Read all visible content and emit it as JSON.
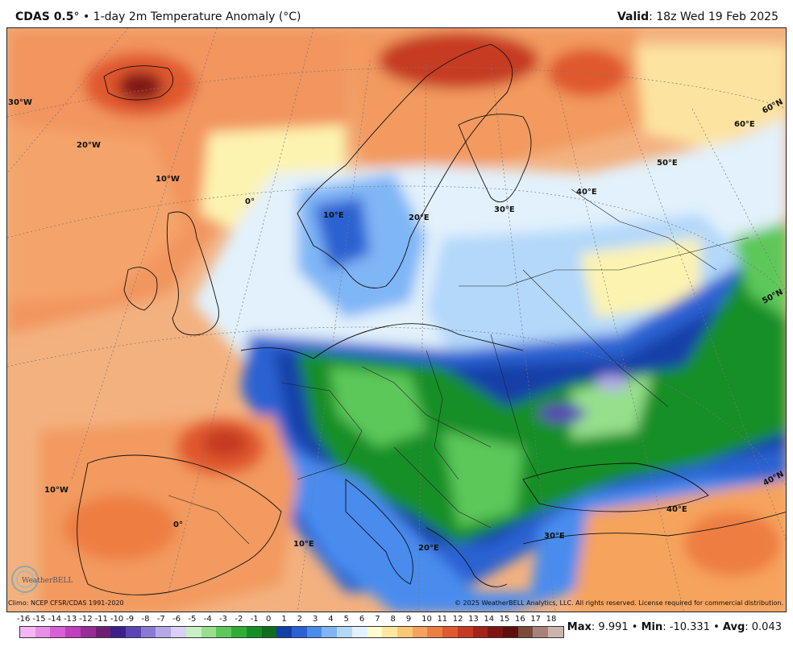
{
  "header": {
    "model": "CDAS 0.5",
    "degree_mark": "°",
    "separator": "•",
    "description": "1-day 2m Temperature Anomaly (°C)",
    "valid_label": "Valid",
    "valid_value": ": 18z Wed 19 Feb 2025"
  },
  "map": {
    "gridlines": {
      "longitude_labels": [
        "30°W",
        "20°W",
        "10°W",
        "0°",
        "10°E",
        "20°E",
        "30°E",
        "40°E",
        "50°E",
        "60°E",
        "10°W",
        "0°",
        "10°E",
        "20°E",
        "30°E",
        "40°E"
      ],
      "latitude_labels": [
        "60°N",
        "50°N",
        "40°N"
      ]
    },
    "logo_text": "WeatherBELL"
  },
  "footer": {
    "climo": "Climo: NCEP CFSR/CDAS 1991-2020",
    "copyright": "© 2025 WeatherBELL Analytics, LLC. All rights reserved. License required for commercial distribution."
  },
  "colorbar": {
    "labels": [
      "-16",
      "-15",
      "-14",
      "-13",
      "-12",
      "-11",
      "-10",
      "-9",
      "-8",
      "-7",
      "-6",
      "-5",
      "-4",
      "-3",
      "-2",
      "-1",
      "0",
      "1",
      "2",
      "3",
      "4",
      "5",
      "6",
      "7",
      "8",
      "9",
      "10",
      "11",
      "12",
      "13",
      "14",
      "15",
      "16",
      "17",
      "18"
    ],
    "colors": [
      "#f4b6f2",
      "#e88ee6",
      "#d85fd6",
      "#c13cbf",
      "#9a2a98",
      "#6e1f74",
      "#3b1f8c",
      "#5a45b8",
      "#8a7ad6",
      "#b4a8ea",
      "#d8d0f6",
      "#c8f0c4",
      "#96e08c",
      "#5cc85a",
      "#2fae35",
      "#148f28",
      "#0e6e1e",
      "#1240a8",
      "#2a62d2",
      "#4a8cee",
      "#7fb6f6",
      "#b3d8fa",
      "#e2f1fb",
      "#fdfbd0",
      "#fde7a0",
      "#fbc878",
      "#f6a35c",
      "#ee7d42",
      "#e0582e",
      "#c63a22",
      "#a5221a",
      "#801412",
      "#5c0f0d",
      "#7a4a3a",
      "#a8827a",
      "#ccb4ae"
    ]
  },
  "stats": {
    "max_label": "Max",
    "max_value": ": 9.991",
    "sep1": " • ",
    "min_label": "Min",
    "min_value": ": -10.331",
    "sep2": " • ",
    "avg_label": "Avg",
    "avg_value": ": 0.043"
  }
}
